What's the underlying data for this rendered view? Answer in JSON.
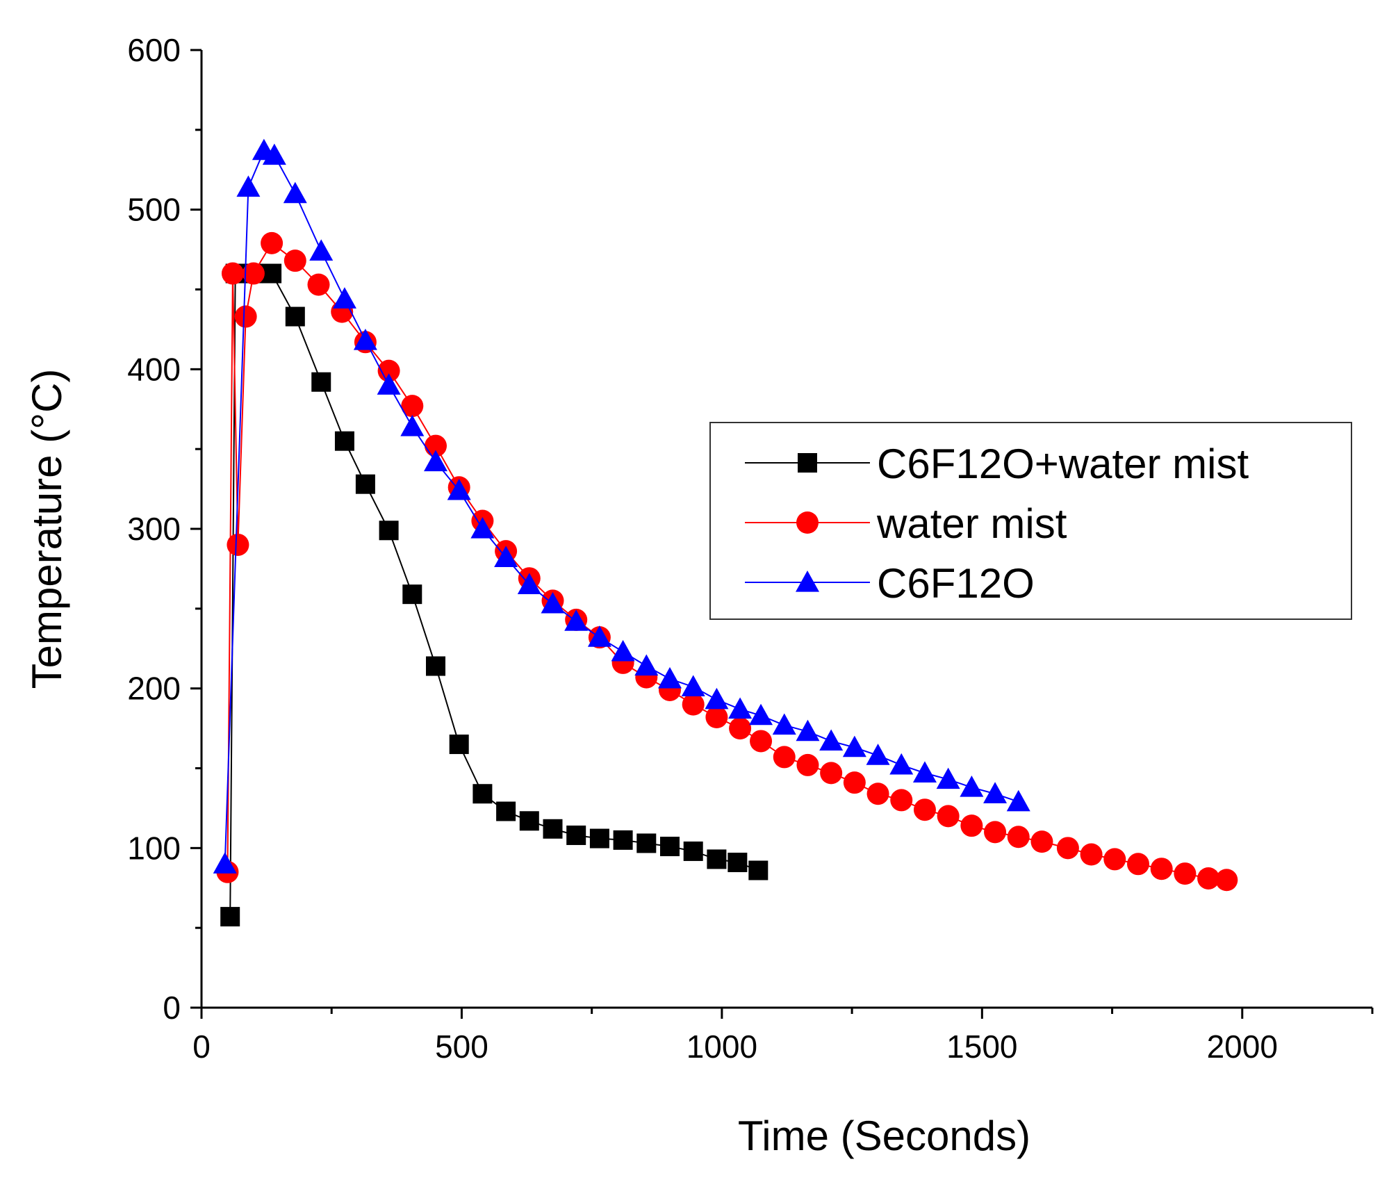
{
  "chart_data": {
    "type": "line",
    "title": "",
    "xlabel": "Time (Seconds)",
    "ylabel": "Temperature (°C)",
    "xlim": [
      0,
      2250
    ],
    "ylim": [
      0,
      600
    ],
    "xticks": [
      0,
      500,
      1000,
      1500,
      2000
    ],
    "yticks": [
      0,
      100,
      200,
      300,
      400,
      500,
      600
    ],
    "grid": false,
    "legend_position": "center-right",
    "series": [
      {
        "name": "C6F12O+water mist",
        "color": "#000000",
        "marker": "square",
        "x": [
          55,
          65,
          75,
          100,
          135,
          180,
          230,
          275,
          315,
          360,
          405,
          450,
          495,
          540,
          585,
          630,
          675,
          720,
          765,
          810,
          855,
          900,
          945,
          990,
          1030,
          1070
        ],
        "y": [
          57,
          460,
          460,
          460,
          460,
          433,
          392,
          355,
          328,
          299,
          259,
          214,
          165,
          134,
          123,
          117,
          112,
          108,
          106,
          105,
          103,
          101,
          98,
          93,
          91,
          86
        ]
      },
      {
        "name": "water mist",
        "color": "#ff0000",
        "marker": "circle",
        "x": [
          50,
          60,
          70,
          85,
          100,
          135,
          180,
          225,
          270,
          315,
          360,
          405,
          450,
          495,
          540,
          585,
          630,
          675,
          720,
          765,
          810,
          855,
          900,
          945,
          990,
          1035,
          1075,
          1120,
          1165,
          1210,
          1255,
          1300,
          1345,
          1390,
          1435,
          1480,
          1525,
          1570,
          1615,
          1665,
          1710,
          1755,
          1800,
          1845,
          1890,
          1935,
          1970
        ],
        "y": [
          85,
          460,
          290,
          433,
          460,
          479,
          468,
          453,
          436,
          417,
          399,
          377,
          352,
          326,
          305,
          286,
          269,
          255,
          243,
          232,
          216,
          207,
          199,
          190,
          182,
          175,
          167,
          157,
          152,
          147,
          141,
          134,
          130,
          124,
          120,
          114,
          110,
          107,
          104,
          100,
          96,
          93,
          90,
          87,
          84,
          81,
          80
        ]
      },
      {
        "name": "C6F12O",
        "color": "#0000ff",
        "marker": "triangle",
        "x": [
          45,
          90,
          120,
          140,
          180,
          230,
          275,
          315,
          360,
          405,
          450,
          495,
          540,
          585,
          630,
          675,
          720,
          765,
          810,
          855,
          900,
          945,
          990,
          1035,
          1075,
          1120,
          1165,
          1210,
          1255,
          1300,
          1345,
          1390,
          1435,
          1480,
          1525,
          1570
        ],
        "y": [
          90,
          514,
          537,
          534,
          510,
          474,
          444,
          418,
          390,
          364,
          342,
          324,
          300,
          282,
          265,
          253,
          242,
          232,
          223,
          214,
          206,
          201,
          193,
          187,
          183,
          177,
          173,
          167,
          163,
          158,
          152,
          147,
          143,
          138,
          134,
          129
        ]
      }
    ]
  }
}
